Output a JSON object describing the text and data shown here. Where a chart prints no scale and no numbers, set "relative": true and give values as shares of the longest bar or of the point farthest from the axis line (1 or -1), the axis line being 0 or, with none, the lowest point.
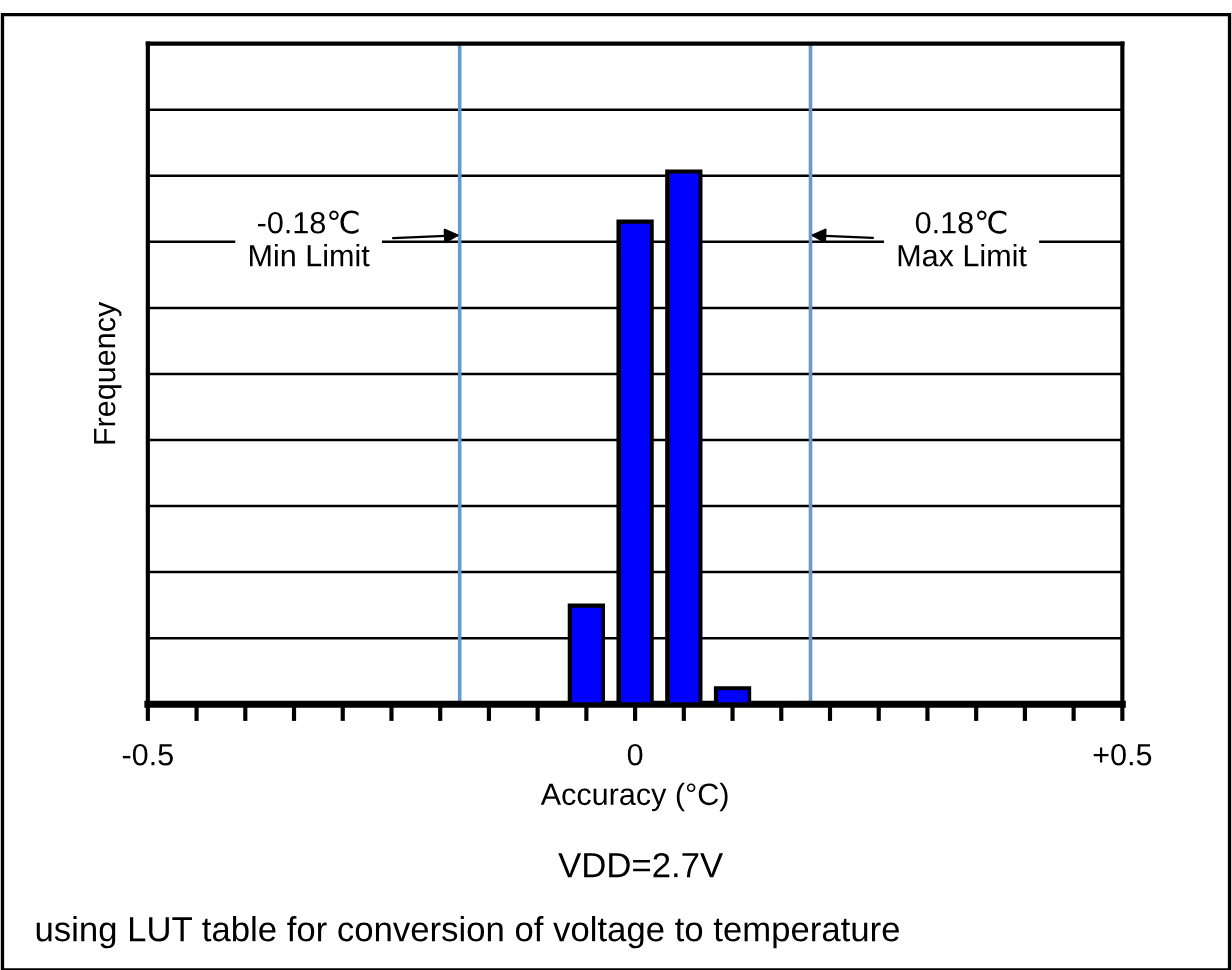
{
  "chart_data": {
    "type": "bar",
    "relative": true,
    "xlabel": "Accuracy (°C)",
    "ylabel": "Frequency",
    "x": [
      -0.05,
      0,
      0.05,
      0.1
    ],
    "values": [
      0.185,
      0.906,
      1,
      0.03
    ],
    "color": "#0000ff",
    "xlim": [
      -0.5,
      0.5
    ],
    "xticks": [
      {
        "value": -0.5,
        "label": "-0.5"
      },
      {
        "value": -0.45,
        "label": null
      },
      {
        "value": -0.4,
        "label": null
      },
      {
        "value": -0.35,
        "label": null
      },
      {
        "value": -0.3,
        "label": null
      },
      {
        "value": -0.25,
        "label": null
      },
      {
        "value": -0.2,
        "label": null
      },
      {
        "value": -0.15,
        "label": null
      },
      {
        "value": -0.1,
        "label": null
      },
      {
        "value": -0.05,
        "label": null
      },
      {
        "value": 0,
        "label": "0"
      },
      {
        "value": 0.05,
        "label": null
      },
      {
        "value": 0.1,
        "label": null
      },
      {
        "value": 0.15,
        "label": null
      },
      {
        "value": 0.2,
        "label": null
      },
      {
        "value": 0.25,
        "label": null
      },
      {
        "value": 0.3,
        "label": null
      },
      {
        "value": 0.35,
        "label": null
      },
      {
        "value": 0.4,
        "label": null
      },
      {
        "value": 0.45,
        "label": null
      },
      {
        "value": 0.5,
        "label": "+0.5"
      }
    ],
    "ref_lines": [
      {
        "axis": "x",
        "value": -0.18,
        "label": "-0.18℃\nMin Limit",
        "color": "#6699cc"
      },
      {
        "axis": "x",
        "value": 0.18,
        "label": "0.18℃\nMax Limit",
        "color": "#6699cc"
      }
    ],
    "grid": "y",
    "annotations": [
      "VDD=2.7V",
      "using LUT table for conversion of voltage to temperature"
    ]
  }
}
